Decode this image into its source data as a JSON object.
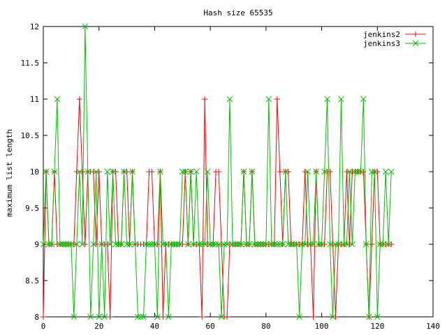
{
  "chart_data": {
    "type": "line",
    "title": "Hash size 65535",
    "xlabel": "",
    "ylabel": "maximum list length",
    "xlim": [
      0,
      140
    ],
    "ylim": [
      8,
      12
    ],
    "xticks": [
      "0",
      "20",
      "40",
      "60",
      "80",
      "100",
      "120",
      "140"
    ],
    "yticks": [
      "8",
      "8.5",
      "9",
      "9.5",
      "10",
      "10.5",
      "11",
      "11.5",
      "12"
    ],
    "grid": false,
    "legend_position": "top-right",
    "x": [
      0,
      1,
      2,
      3,
      4,
      5,
      6,
      7,
      8,
      9,
      10,
      11,
      12,
      13,
      14,
      15,
      16,
      17,
      18,
      19,
      20,
      21,
      22,
      23,
      24,
      25,
      26,
      27,
      28,
      29,
      30,
      31,
      32,
      33,
      34,
      35,
      36,
      37,
      38,
      39,
      40,
      41,
      42,
      43,
      44,
      45,
      46,
      47,
      48,
      49,
      50,
      51,
      52,
      53,
      54,
      55,
      56,
      57,
      58,
      59,
      60,
      61,
      62,
      63,
      64,
      65,
      66,
      67,
      68,
      69,
      70,
      71,
      72,
      73,
      74,
      75,
      76,
      77,
      78,
      79,
      80,
      81,
      82,
      83,
      84,
      85,
      86,
      87,
      88,
      89,
      90,
      91,
      92,
      93,
      94,
      95,
      96,
      97,
      98,
      99,
      100,
      101,
      102,
      103,
      104,
      105,
      106,
      107,
      108,
      109,
      110,
      111,
      112,
      113,
      114,
      115,
      116,
      117,
      118,
      119,
      120,
      121,
      122,
      123,
      124,
      125
    ],
    "series": [
      {
        "name": "jenkins2",
        "color": "#ff0000",
        "marker": "plus",
        "values": [
          8,
          10,
          9,
          9,
          10,
          9,
          9,
          9,
          9,
          9,
          9,
          9,
          10,
          11,
          10,
          9,
          10,
          10,
          10,
          9,
          10,
          9,
          9,
          9,
          8,
          10,
          10,
          9,
          9,
          10,
          10,
          9,
          10,
          9,
          9,
          9,
          9,
          9,
          10,
          10,
          9,
          9,
          10,
          8,
          9,
          9,
          9,
          9,
          9,
          9,
          9,
          10,
          9,
          10,
          9,
          9,
          9,
          8,
          11,
          9,
          9,
          9,
          10,
          10,
          9,
          8,
          8,
          9,
          9,
          9,
          9,
          9,
          10,
          9,
          9,
          10,
          9,
          9,
          9,
          9,
          9,
          9,
          9,
          9,
          11,
          10,
          9,
          10,
          10,
          9,
          9,
          9,
          9,
          9,
          10,
          9,
          9,
          8,
          10,
          9,
          9,
          9,
          10,
          10,
          9,
          8,
          9,
          9,
          9,
          10,
          9,
          10,
          10,
          10,
          10,
          10,
          9,
          8,
          9,
          10,
          10,
          9,
          9,
          9,
          9,
          9
        ]
      },
      {
        "name": "jenkins3",
        "color": "#00c000",
        "marker": "cross",
        "values": [
          9,
          10,
          9,
          9,
          10,
          11,
          9,
          9,
          9,
          9,
          9,
          8,
          9,
          10,
          9,
          12,
          10,
          8,
          9,
          10,
          8,
          9,
          8,
          10,
          9,
          10,
          9,
          9,
          9,
          10,
          9,
          9,
          10,
          9,
          8,
          8,
          8,
          9,
          9,
          9,
          9,
          8,
          10,
          9,
          9,
          8,
          9,
          9,
          9,
          9,
          10,
          10,
          9,
          10,
          9,
          10,
          9,
          9,
          9,
          10,
          9,
          9,
          9,
          9,
          8,
          9,
          9,
          11,
          9,
          9,
          9,
          9,
          10,
          9,
          9,
          10,
          9,
          9,
          9,
          9,
          9,
          11,
          9,
          9,
          9,
          9,
          9,
          10,
          9,
          9,
          9,
          9,
          8,
          9,
          9,
          10,
          9,
          9,
          10,
          9,
          9,
          10,
          11,
          9,
          8,
          9,
          9,
          11,
          9,
          9,
          10,
          9,
          10,
          10,
          10,
          11,
          9,
          8,
          10,
          10,
          8,
          9,
          9,
          10,
          9,
          10
        ]
      }
    ]
  }
}
